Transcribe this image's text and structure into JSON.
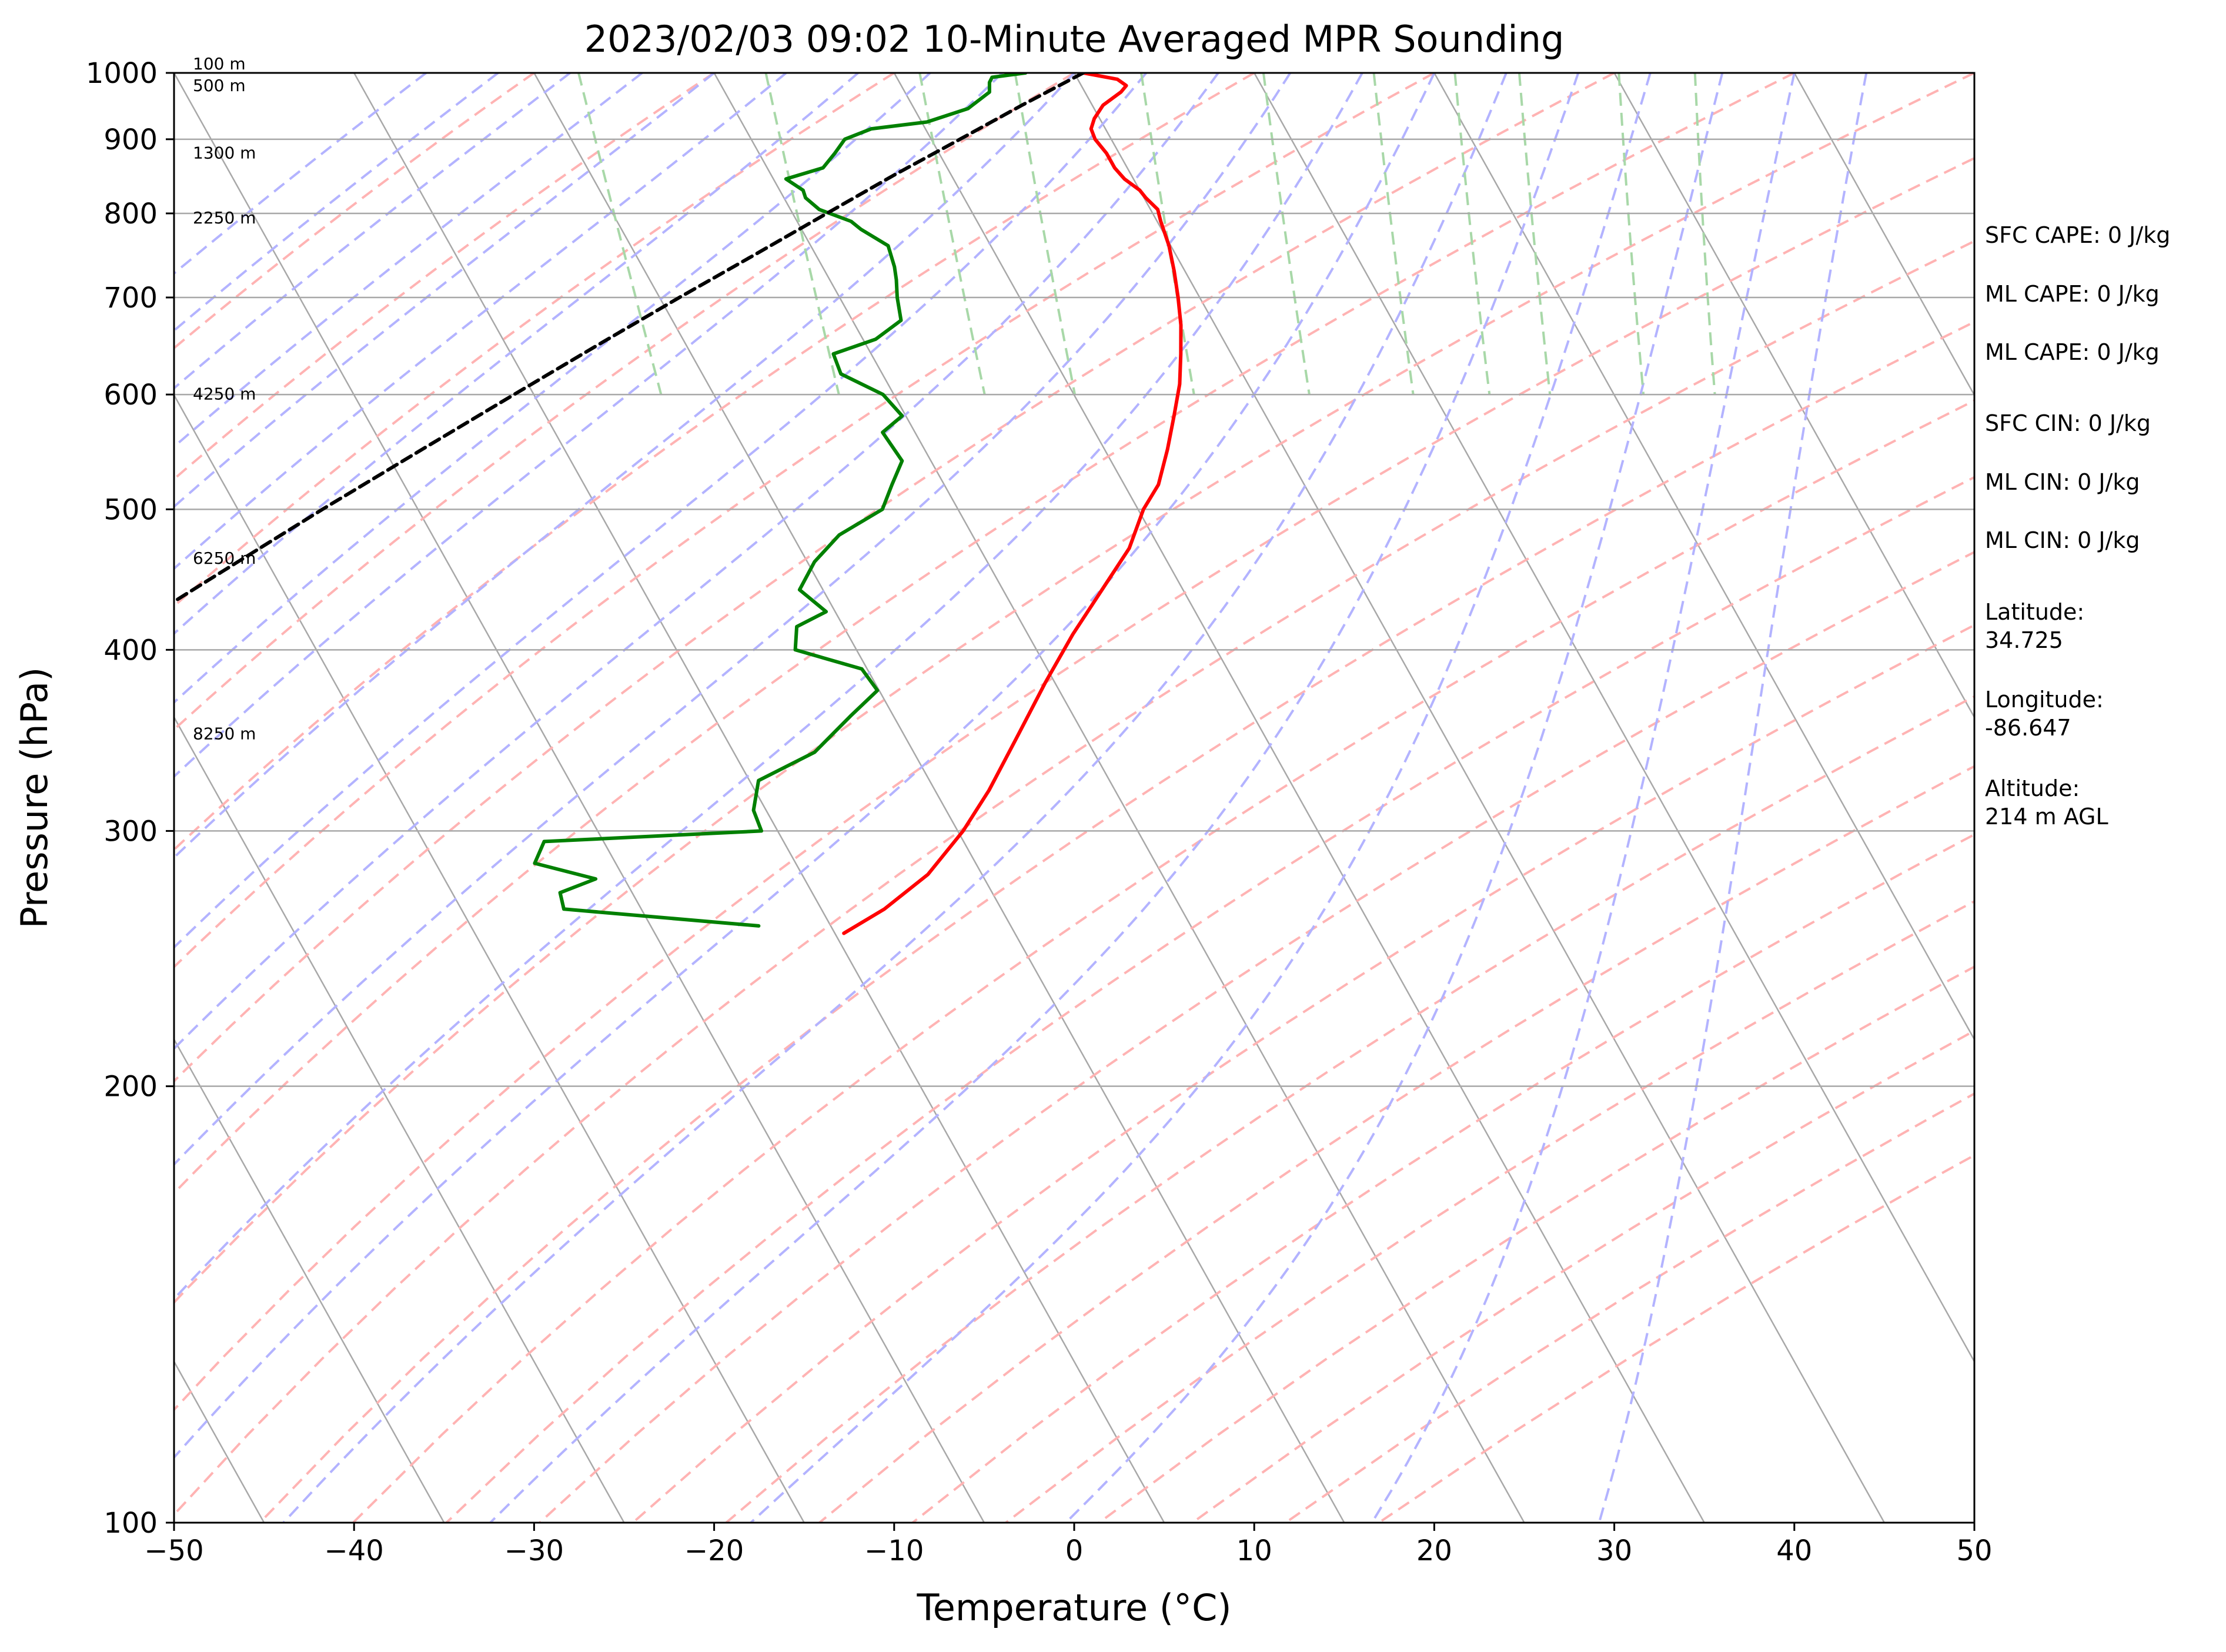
{
  "chart_data": {
    "type": "line",
    "title": "2023/02/03 09:02 10-Minute Averaged MPR Sounding",
    "xlabel": "Temperature (°C)",
    "ylabel": "Pressure (hPa)",
    "xlim": [
      -50,
      50
    ],
    "ylim": [
      1000,
      100
    ],
    "y_scale": "log",
    "x_ticks": [
      -50,
      -40,
      -30,
      -20,
      -10,
      0,
      10,
      20,
      30,
      40,
      50
    ],
    "x_tick_labels": [
      "−50",
      "−40",
      "−30",
      "−20",
      "−10",
      "0",
      "10",
      "20",
      "30",
      "40",
      "50"
    ],
    "y_ticks": [
      100,
      200,
      300,
      400,
      500,
      600,
      700,
      800,
      900,
      1000
    ],
    "y_tick_labels": [
      "100",
      "200",
      "300",
      "400",
      "500",
      "600",
      "700",
      "800",
      "900",
      "1000"
    ],
    "grid": true,
    "skew": 45,
    "background_lines": {
      "isotherm_color": "#a8a8a8",
      "dry_adiabat_color": "#ffb3b3",
      "moist_adiabat_color": "#b3b3ff",
      "mixing_ratio_color": "#a8d8a8"
    },
    "series": [
      {
        "role": "temperature",
        "color": "#ff0000",
        "points": [
          {
            "p": 1000,
            "t": 0.5
          },
          {
            "p": 990,
            "t": 2.2
          },
          {
            "p": 980,
            "t": 2.5
          },
          {
            "p": 970,
            "t": 2.0
          },
          {
            "p": 950,
            "t": 0.6
          },
          {
            "p": 930,
            "t": -0.3
          },
          {
            "p": 915,
            "t": -0.8
          },
          {
            "p": 900,
            "t": -0.9
          },
          {
            "p": 880,
            "t": -0.7
          },
          {
            "p": 860,
            "t": -0.7
          },
          {
            "p": 845,
            "t": -0.5
          },
          {
            "p": 830,
            "t": 0.0
          },
          {
            "p": 820,
            "t": 0.1
          },
          {
            "p": 805,
            "t": 0.4
          },
          {
            "p": 790,
            "t": 0.2
          },
          {
            "p": 760,
            "t": -0.1
          },
          {
            "p": 730,
            "t": -0.6
          },
          {
            "p": 700,
            "t": -1.2
          },
          {
            "p": 670,
            "t": -1.9
          },
          {
            "p": 640,
            "t": -2.8
          },
          {
            "p": 610,
            "t": -3.8
          },
          {
            "p": 580,
            "t": -5.1
          },
          {
            "p": 550,
            "t": -6.5
          },
          {
            "p": 520,
            "t": -8.1
          },
          {
            "p": 500,
            "t": -9.7
          },
          {
            "p": 470,
            "t": -11.7
          },
          {
            "p": 440,
            "t": -14.5
          },
          {
            "p": 410,
            "t": -17.5
          },
          {
            "p": 380,
            "t": -20.5
          },
          {
            "p": 350,
            "t": -23.6
          },
          {
            "p": 320,
            "t": -27.0
          },
          {
            "p": 300,
            "t": -29.7
          },
          {
            "p": 280,
            "t": -33.0
          },
          {
            "p": 265,
            "t": -36.5
          },
          {
            "p": 255,
            "t": -39.5
          }
        ]
      },
      {
        "role": "dewpoint",
        "color": "#008000",
        "points": [
          {
            "p": 1000,
            "t": -2.7
          },
          {
            "p": 993,
            "t": -4.7
          },
          {
            "p": 985,
            "t": -5.0
          },
          {
            "p": 970,
            "t": -5.3
          },
          {
            "p": 945,
            "t": -7.0
          },
          {
            "p": 925,
            "t": -9.7
          },
          {
            "p": 915,
            "t": -13.0
          },
          {
            "p": 900,
            "t": -14.8
          },
          {
            "p": 880,
            "t": -15.8
          },
          {
            "p": 860,
            "t": -16.9
          },
          {
            "p": 845,
            "t": -19.3
          },
          {
            "p": 830,
            "t": -18.7
          },
          {
            "p": 820,
            "t": -18.8
          },
          {
            "p": 805,
            "t": -18.4
          },
          {
            "p": 790,
            "t": -17.0
          },
          {
            "p": 780,
            "t": -16.7
          },
          {
            "p": 760,
            "t": -15.7
          },
          {
            "p": 735,
            "t": -16.0
          },
          {
            "p": 720,
            "t": -16.3
          },
          {
            "p": 700,
            "t": -16.8
          },
          {
            "p": 675,
            "t": -17.3
          },
          {
            "p": 655,
            "t": -19.3
          },
          {
            "p": 640,
            "t": -22.1
          },
          {
            "p": 620,
            "t": -22.3
          },
          {
            "p": 600,
            "t": -20.6
          },
          {
            "p": 580,
            "t": -20.2
          },
          {
            "p": 565,
            "t": -21.8
          },
          {
            "p": 540,
            "t": -21.6
          },
          {
            "p": 520,
            "t": -22.9
          },
          {
            "p": 500,
            "t": -24.2
          },
          {
            "p": 480,
            "t": -27.4
          },
          {
            "p": 460,
            "t": -29.6
          },
          {
            "p": 440,
            "t": -31.3
          },
          {
            "p": 425,
            "t": -30.5
          },
          {
            "p": 415,
            "t": -32.6
          },
          {
            "p": 400,
            "t": -33.4
          },
          {
            "p": 388,
            "t": -30.3
          },
          {
            "p": 375,
            "t": -30.1
          },
          {
            "p": 360,
            "t": -32.4
          },
          {
            "p": 340,
            "t": -35.5
          },
          {
            "p": 325,
            "t": -39.5
          },
          {
            "p": 310,
            "t": -40.7
          },
          {
            "p": 300,
            "t": -40.9
          },
          {
            "p": 295,
            "t": -53.3
          },
          {
            "p": 285,
            "t": -54.5
          },
          {
            "p": 278,
            "t": -51.6
          },
          {
            "p": 272,
            "t": -54.0
          },
          {
            "p": 265,
            "t": -54.3
          },
          {
            "p": 258,
            "t": -44.0
          }
        ]
      },
      {
        "role": "parcel",
        "color": "#000000",
        "dashed": true,
        "points": [
          {
            "p": 1000,
            "t": 0.5
          },
          {
            "p": 950,
            "t": -3.9
          },
          {
            "p": 900,
            "t": -8.4
          },
          {
            "p": 850,
            "t": -13.2
          },
          {
            "p": 800,
            "t": -18.1
          },
          {
            "p": 750,
            "t": -23.3
          },
          {
            "p": 700,
            "t": -28.9
          },
          {
            "p": 650,
            "t": -34.8
          },
          {
            "p": 600,
            "t": -41.1
          },
          {
            "p": 550,
            "t": -47.9
          },
          {
            "p": 500,
            "t": -55.3
          },
          {
            "p": 450,
            "t": -63.3
          },
          {
            "p": 400,
            "t": -72.2
          },
          {
            "p": 350,
            "t": -82.1
          },
          {
            "p": 300,
            "t": -93.4
          },
          {
            "p": 285,
            "t": -97.0
          }
        ]
      }
    ],
    "height_labels": [
      {
        "p": 1000,
        "label": "100 m"
      },
      {
        "p": 966,
        "label": "500 m"
      },
      {
        "p": 868,
        "label": "1300 m"
      },
      {
        "p": 783,
        "label": "2250 m"
      },
      {
        "p": 592,
        "label": "4250 m"
      },
      {
        "p": 456,
        "label": "6250 m"
      },
      {
        "p": 345,
        "label": "8250 m"
      }
    ],
    "annotations": [
      "SFC CAPE: 0 J/kg",
      "ML CAPE: 0 J/kg",
      "ML CAPE: 0 J/kg",
      "SFC CIN: 0 J/kg",
      "ML CIN: 0 J/kg",
      "ML CIN: 0 J/kg",
      "Latitude:",
      "34.725",
      "Longitude:",
      "-86.647",
      "Altitude:",
      "214 m AGL"
    ]
  }
}
